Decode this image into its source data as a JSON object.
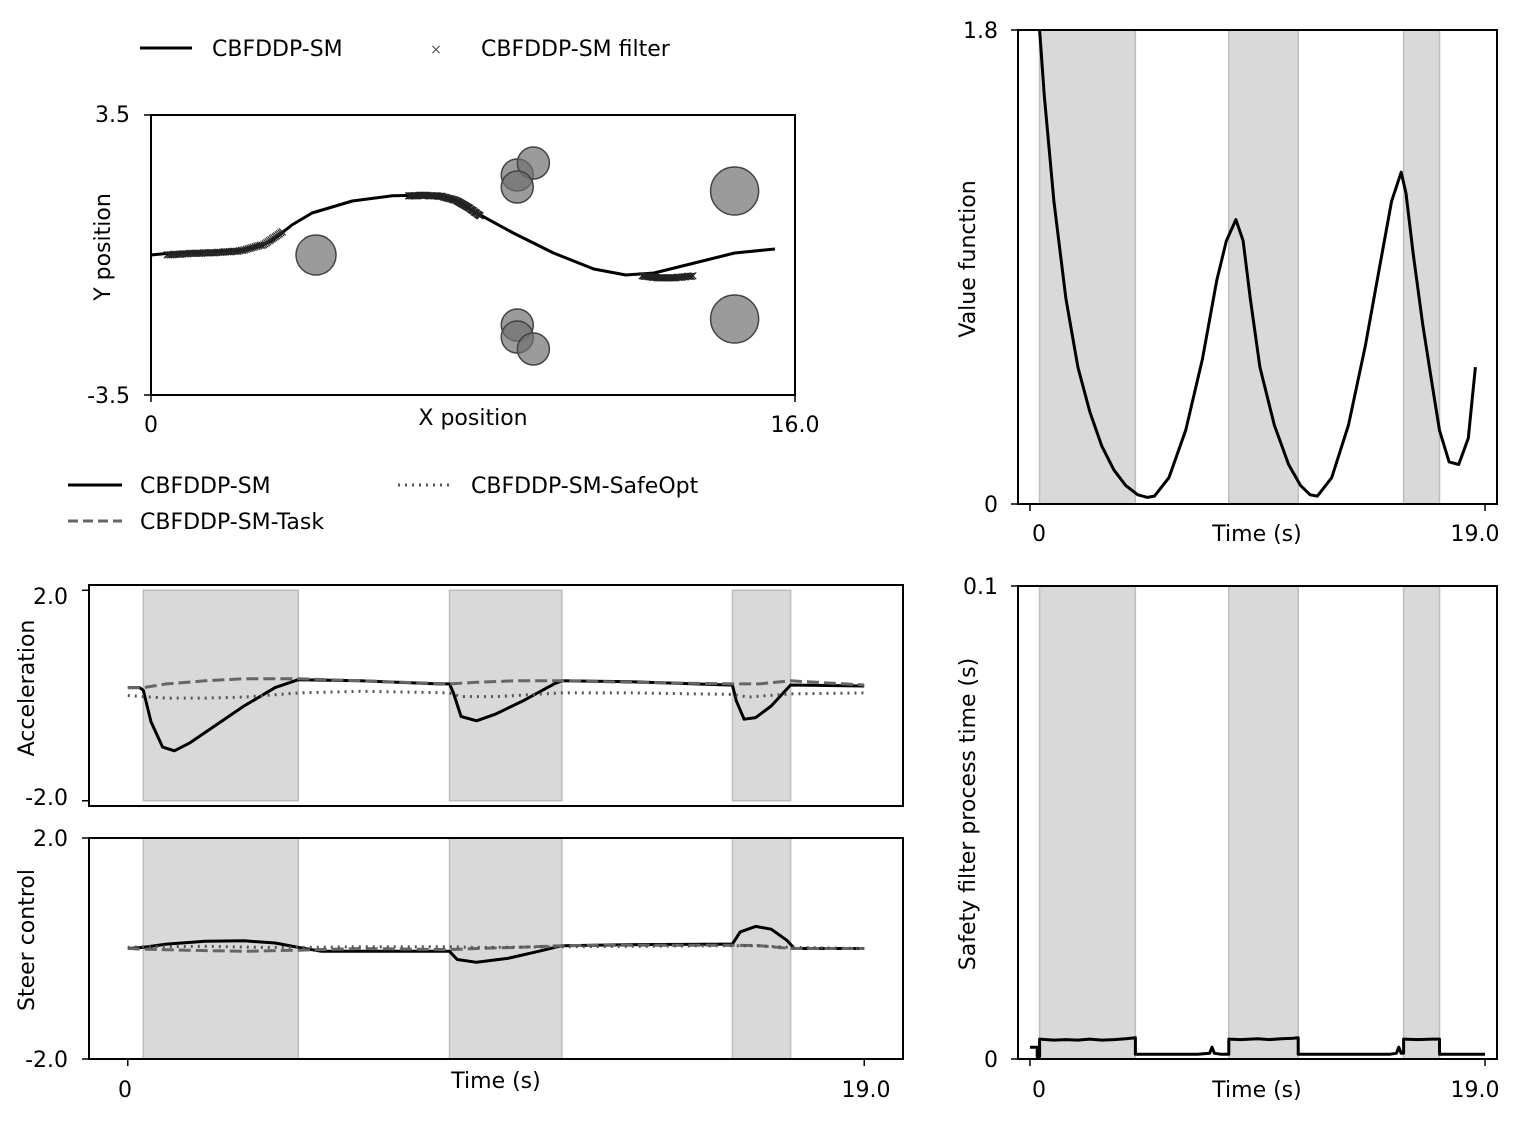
{
  "colors": {
    "band": "#d9d9d9",
    "band_edge": "#bdbdbd",
    "obstacle": "#707070",
    "task": "#666666",
    "safeopt": "#555555"
  },
  "chart_data": [
    {
      "id": "trajectory",
      "type": "line",
      "xlabel": "X position",
      "ylabel": "Y position",
      "xlim": [
        0,
        16.0
      ],
      "ylim": [
        -3.5,
        3.5
      ],
      "xticks": [
        "0",
        "16.0"
      ],
      "yticks": [
        "3.5",
        "-3.5"
      ],
      "legend": {
        "placement": "top",
        "entries": [
          "CBFDDP-SM",
          "CBFDDP-SM filter"
        ]
      },
      "series": [
        {
          "name": "CBFDDP-SM",
          "x": [
            0,
            0.5,
            1.5,
            2.5,
            3.0,
            3.5,
            4.0,
            5.0,
            6.0,
            7.0,
            7.5,
            8.0,
            9.0,
            10.0,
            11.0,
            11.8,
            12.5,
            13.5,
            14.5,
            15.5
          ],
          "y": [
            0.0,
            0.05,
            0.08,
            0.15,
            0.35,
            0.75,
            1.05,
            1.35,
            1.48,
            1.5,
            1.4,
            1.1,
            0.55,
            0.05,
            -0.35,
            -0.5,
            -0.45,
            -0.2,
            0.05,
            0.15
          ]
        },
        {
          "name": "CBFDDP-SM filter",
          "x": [
            0.4,
            1.0,
            1.6,
            2.2,
            2.8,
            3.3,
            6.4,
            6.8,
            7.2,
            7.6,
            7.9,
            8.2,
            12.2,
            12.6,
            13.0,
            13.5
          ],
          "y": [
            0.02,
            0.06,
            0.08,
            0.12,
            0.28,
            0.62,
            1.5,
            1.51,
            1.49,
            1.38,
            1.2,
            0.98,
            -0.5,
            -0.55,
            -0.55,
            -0.5
          ]
        }
      ],
      "obstacles": [
        {
          "x": 4.1,
          "y": 0.0,
          "r": 0.5
        },
        {
          "x": 9.1,
          "y": 2.0,
          "r": 0.4
        },
        {
          "x": 9.5,
          "y": 2.3,
          "r": 0.4
        },
        {
          "x": 9.1,
          "y": 1.7,
          "r": 0.4
        },
        {
          "x": 9.1,
          "y": -1.75,
          "r": 0.4
        },
        {
          "x": 9.1,
          "y": -2.05,
          "r": 0.4
        },
        {
          "x": 9.5,
          "y": -2.35,
          "r": 0.4
        },
        {
          "x": 14.5,
          "y": 1.6,
          "r": 0.6
        },
        {
          "x": 14.5,
          "y": -1.6,
          "r": 0.6
        }
      ]
    },
    {
      "id": "value-function",
      "type": "line",
      "xlabel": "Time (s)",
      "ylabel": "Value function",
      "xlim": [
        -0.5,
        19.5
      ],
      "ylim": [
        0,
        1.8
      ],
      "xticks": [
        "0",
        "19.0"
      ],
      "yticks": [
        "1.8",
        "0"
      ],
      "bands": [
        [
          0.4,
          4.4
        ],
        [
          8.3,
          11.2
        ],
        [
          15.6,
          17.1
        ]
      ],
      "series": [
        {
          "name": "CBFDDP-SM",
          "x": [
            0.4,
            0.6,
            1.0,
            1.5,
            2.0,
            2.5,
            3.0,
            3.5,
            4.0,
            4.5,
            4.9,
            5.2,
            5.8,
            6.5,
            7.2,
            7.8,
            8.2,
            8.6,
            8.9,
            9.2,
            9.6,
            10.2,
            10.8,
            11.3,
            11.7,
            12.0,
            12.6,
            13.3,
            14.0,
            14.6,
            15.1,
            15.5,
            15.7,
            16.0,
            16.4,
            16.8,
            17.1,
            17.5,
            17.9,
            18.3,
            18.6
          ],
          "y": [
            1.8,
            1.55,
            1.15,
            0.78,
            0.52,
            0.35,
            0.22,
            0.13,
            0.07,
            0.035,
            0.025,
            0.03,
            0.1,
            0.28,
            0.55,
            0.85,
            1.0,
            1.08,
            1.0,
            0.78,
            0.52,
            0.3,
            0.15,
            0.07,
            0.035,
            0.03,
            0.1,
            0.3,
            0.6,
            0.9,
            1.15,
            1.26,
            1.18,
            0.95,
            0.68,
            0.45,
            0.28,
            0.16,
            0.15,
            0.25,
            0.52
          ]
        }
      ]
    },
    {
      "id": "acceleration",
      "type": "line",
      "xlabel": "",
      "ylabel": "Acceleration",
      "xlim": [
        -1.0,
        20.0
      ],
      "ylim": [
        -2.1,
        2.1
      ],
      "xticks": [],
      "yticks": [
        "2.0",
        "-2.0"
      ],
      "bands": [
        [
          0.4,
          4.4
        ],
        [
          8.3,
          11.2
        ],
        [
          15.6,
          17.1
        ]
      ],
      "legend": {
        "placement": "top",
        "entries": [
          "CBFDDP-SM",
          "CBFDDP-SM-SafeOpt",
          "CBFDDP-SM-Task"
        ]
      },
      "series": [
        {
          "name": "CBFDDP-SM",
          "x": [
            0,
            0.3,
            0.4,
            0.6,
            0.9,
            1.2,
            1.6,
            2.2,
            3.0,
            3.8,
            4.4,
            6.0,
            8.0,
            8.3,
            8.4,
            8.6,
            9.0,
            9.5,
            10.2,
            11.0,
            11.2,
            13.0,
            15.5,
            15.6,
            15.7,
            15.9,
            16.2,
            16.6,
            17.1,
            19.0
          ],
          "y": [
            0.15,
            0.15,
            0.1,
            -0.5,
            -0.98,
            -1.05,
            -0.9,
            -0.6,
            -0.2,
            0.15,
            0.3,
            0.28,
            0.22,
            0.22,
            0.05,
            -0.4,
            -0.48,
            -0.35,
            -0.1,
            0.22,
            0.28,
            0.26,
            0.2,
            0.2,
            -0.1,
            -0.45,
            -0.42,
            -0.2,
            0.2,
            0.18
          ]
        },
        {
          "name": "CBFDDP-SM-Task",
          "x": [
            0,
            0.4,
            1.0,
            2.0,
            3.0,
            4.4,
            6.0,
            8.3,
            9.0,
            10.0,
            11.2,
            13.0,
            15.6,
            16.3,
            17.1,
            19.0
          ],
          "y": [
            0.15,
            0.15,
            0.22,
            0.28,
            0.32,
            0.32,
            0.28,
            0.22,
            0.25,
            0.28,
            0.28,
            0.25,
            0.22,
            0.22,
            0.28,
            0.2
          ]
        },
        {
          "name": "CBFDDP-SM-SafeOpt",
          "x": [
            0,
            0.4,
            1.0,
            2.0,
            3.0,
            4.4,
            6.0,
            8.3,
            8.6,
            9.5,
            11.2,
            13.0,
            15.6,
            16.0,
            17.1,
            19.0
          ],
          "y": [
            0.0,
            -0.02,
            -0.05,
            -0.05,
            -0.03,
            0.05,
            0.08,
            0.05,
            -0.02,
            -0.02,
            0.05,
            0.05,
            0.02,
            -0.03,
            0.03,
            0.05
          ]
        }
      ]
    },
    {
      "id": "steer",
      "type": "line",
      "xlabel": "Time (s)",
      "ylabel": "Steer control",
      "xlim": [
        -1.0,
        20.0
      ],
      "ylim": [
        -2.0,
        2.0
      ],
      "xticks": [
        "0",
        "19.0"
      ],
      "yticks": [
        "2.0",
        "-2.0"
      ],
      "bands": [
        [
          0.4,
          4.4
        ],
        [
          8.3,
          11.2
        ],
        [
          15.6,
          17.1
        ]
      ],
      "series": [
        {
          "name": "CBFDDP-SM",
          "x": [
            0,
            0.4,
            1.0,
            2.0,
            3.0,
            3.8,
            4.4,
            5.0,
            6.0,
            8.0,
            8.3,
            8.5,
            9.0,
            9.8,
            10.6,
            11.2,
            13.0,
            15.5,
            15.6,
            15.8,
            16.2,
            16.6,
            17.0,
            17.2,
            19.0
          ],
          "y": [
            0.0,
            0.02,
            0.08,
            0.13,
            0.14,
            0.1,
            0.02,
            -0.05,
            -0.05,
            -0.05,
            -0.05,
            -0.2,
            -0.25,
            -0.18,
            -0.05,
            0.05,
            0.07,
            0.08,
            0.08,
            0.3,
            0.4,
            0.35,
            0.15,
            0.0,
            0.0
          ]
        },
        {
          "name": "CBFDDP-SM-Task",
          "x": [
            0,
            0.4,
            1.5,
            3.0,
            4.4,
            6.0,
            8.3,
            9.0,
            10.0,
            11.2,
            13.0,
            15.6,
            16.3,
            17.1,
            19.0
          ],
          "y": [
            0.0,
            -0.01,
            -0.03,
            -0.05,
            -0.03,
            0.0,
            -0.02,
            0.0,
            0.02,
            0.05,
            0.06,
            0.06,
            0.05,
            0.0,
            0.0
          ]
        },
        {
          "name": "CBFDDP-SM-SafeOpt",
          "x": [
            0,
            0.4,
            2.0,
            3.5,
            4.4,
            6.0,
            8.3,
            9.0,
            11.2,
            13.0,
            15.6,
            16.3,
            17.1,
            19.0
          ],
          "y": [
            0.02,
            0.03,
            0.04,
            0.02,
            0.02,
            0.03,
            0.03,
            0.02,
            0.03,
            0.04,
            0.05,
            0.05,
            0.02,
            0.0
          ]
        }
      ]
    },
    {
      "id": "process-time",
      "type": "line",
      "xlabel": "Time (s)",
      "ylabel": "Safety filter process time (s)",
      "xlim": [
        -0.5,
        19.5
      ],
      "ylim": [
        0,
        0.1
      ],
      "xticks": [
        "0",
        "19.0"
      ],
      "yticks": [
        "0.1",
        "0"
      ],
      "bands": [
        [
          0.4,
          4.4
        ],
        [
          8.3,
          11.2
        ],
        [
          15.6,
          17.1
        ]
      ],
      "series": [
        {
          "name": "CBFDDP-SM",
          "x": [
            0,
            0.3,
            0.3,
            0.4,
            0.4,
            1.0,
            1.5,
            2.0,
            2.5,
            3.0,
            3.5,
            4.0,
            4.4,
            4.4,
            5.0,
            6.0,
            7.0,
            7.5,
            7.6,
            7.7,
            8.0,
            8.3,
            8.3,
            8.8,
            9.5,
            10.0,
            10.5,
            11.0,
            11.2,
            11.2,
            12.0,
            13.0,
            14.0,
            15.0,
            15.3,
            15.4,
            15.5,
            15.6,
            15.6,
            16.2,
            16.8,
            17.1,
            17.1,
            18.0,
            19.0
          ],
          "y": [
            0.0025,
            0.0025,
            0.0005,
            0.0005,
            0.0042,
            0.004,
            0.0041,
            0.004,
            0.0042,
            0.004,
            0.0041,
            0.0043,
            0.0045,
            0.001,
            0.001,
            0.001,
            0.001,
            0.0012,
            0.0025,
            0.0012,
            0.001,
            0.001,
            0.0042,
            0.0041,
            0.0043,
            0.0041,
            0.0043,
            0.0044,
            0.0045,
            0.001,
            0.001,
            0.001,
            0.001,
            0.001,
            0.0012,
            0.0025,
            0.0012,
            0.0012,
            0.0042,
            0.0041,
            0.0042,
            0.0042,
            0.001,
            0.001,
            0.001
          ]
        }
      ]
    }
  ]
}
